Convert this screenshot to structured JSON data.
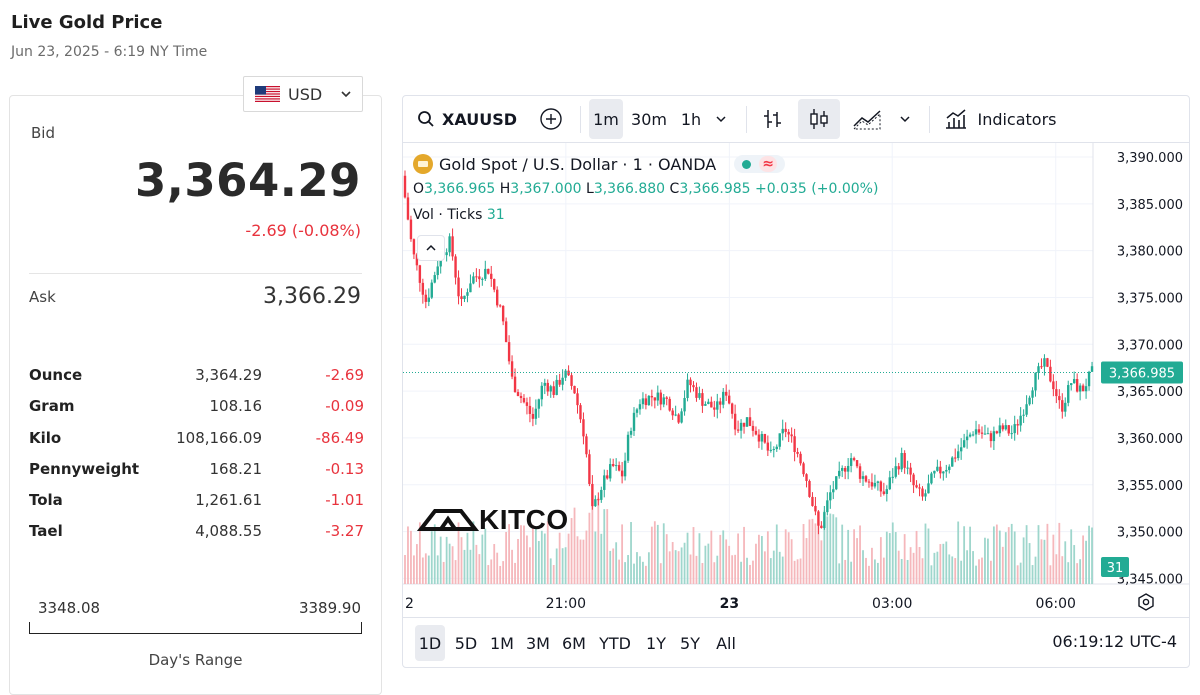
{
  "page": {
    "title": "Live Gold Price",
    "date": "Jun 23, 2025 - 6:19 NY Time"
  },
  "currency": {
    "selected": "USD"
  },
  "quote": {
    "bid_label": "Bid",
    "bid": "3,364.29",
    "change": "-2.69 (-0.08%)",
    "ask_label": "Ask",
    "ask": "3,366.29"
  },
  "units": [
    {
      "name": "Ounce",
      "value": "3,364.29",
      "change": "-2.69"
    },
    {
      "name": "Gram",
      "value": "108.16",
      "change": "-0.09"
    },
    {
      "name": "Kilo",
      "value": "108,166.09",
      "change": "-86.49"
    },
    {
      "name": "Pennyweight",
      "value": "168.21",
      "change": "-0.13"
    },
    {
      "name": "Tola",
      "value": "1,261.61",
      "change": "-1.01"
    },
    {
      "name": "Tael",
      "value": "4,088.55",
      "change": "-3.27"
    }
  ],
  "day_range": {
    "low": "3348.08",
    "high": "3389.90",
    "label": "Day's Range"
  },
  "toolbar": {
    "symbol": "XAUUSD",
    "intervals": [
      "1m",
      "30m",
      "1h"
    ],
    "active_interval": "1m",
    "indicators_label": "Indicators"
  },
  "legend": {
    "title": "Gold Spot / U.S. Dollar · 1 · OANDA",
    "o_label": "O",
    "o": "3,366.965",
    "h_label": "H",
    "h": "3,367.000",
    "l_label": "L",
    "l": "3,366.880",
    "c_label": "C",
    "c": "3,366.985",
    "change": "+0.035 (+0.00%)",
    "vol_label": "Vol · Ticks",
    "vol": "31"
  },
  "watermark": "KITCO",
  "colors": {
    "up": "#22ab94",
    "down": "#f23645",
    "vol_up": "#9ed6cc",
    "vol_down": "#f5b7bb",
    "bid_change": "#e8333d"
  },
  "range_buttons": [
    "1D",
    "5D",
    "1M",
    "3M",
    "6M",
    "YTD",
    "1Y",
    "5Y",
    "All"
  ],
  "active_range": "1D",
  "clock": "06:19:12 UTC-4",
  "chart_data": {
    "type": "candlestick",
    "y_ticks": [
      "3,390.000",
      "3,385.000",
      "3,380.000",
      "3,375.000",
      "3,370.000",
      "3,365.000",
      "3,360.000",
      "3,355.000",
      "3,350.000",
      "3,345.000"
    ],
    "ylim": [
      3344.4,
      3391.5
    ],
    "x_ticks": [
      {
        "label": "2",
        "t": 0,
        "bold": false
      },
      {
        "label": "21:00",
        "t": 0.236,
        "bold": false
      },
      {
        "label": "23",
        "t": 0.473,
        "bold": true
      },
      {
        "label": "03:00",
        "t": 0.709,
        "bold": false
      },
      {
        "label": "06:00",
        "t": 0.946,
        "bold": false
      }
    ],
    "last_price": 3366.985,
    "last_price_label": "3,366.985",
    "last_volume_label": "31",
    "price_path": [
      [
        0.0,
        3388.0
      ],
      [
        0.015,
        3380.0
      ],
      [
        0.035,
        3374.5
      ],
      [
        0.055,
        3379.5
      ],
      [
        0.07,
        3381.0
      ],
      [
        0.085,
        3374.0
      ],
      [
        0.1,
        3377.0
      ],
      [
        0.125,
        3378.0
      ],
      [
        0.145,
        3373.0
      ],
      [
        0.16,
        3366.0
      ],
      [
        0.175,
        3364.0
      ],
      [
        0.19,
        3362.0
      ],
      [
        0.205,
        3366.0
      ],
      [
        0.22,
        3365.0
      ],
      [
        0.235,
        3367.0
      ],
      [
        0.25,
        3365.0
      ],
      [
        0.265,
        3360.0
      ],
      [
        0.275,
        3352.0
      ],
      [
        0.29,
        3355.0
      ],
      [
        0.305,
        3357.0
      ],
      [
        0.32,
        3356.0
      ],
      [
        0.33,
        3361.0
      ],
      [
        0.345,
        3364.0
      ],
      [
        0.365,
        3364.5
      ],
      [
        0.385,
        3364.0
      ],
      [
        0.4,
        3362.0
      ],
      [
        0.415,
        3366.0
      ],
      [
        0.435,
        3364.0
      ],
      [
        0.455,
        3363.0
      ],
      [
        0.47,
        3365.0
      ],
      [
        0.485,
        3361.0
      ],
      [
        0.5,
        3362.0
      ],
      [
        0.52,
        3360.0
      ],
      [
        0.535,
        3358.0
      ],
      [
        0.555,
        3361.0
      ],
      [
        0.57,
        3359.0
      ],
      [
        0.585,
        3356.0
      ],
      [
        0.598,
        3352.0
      ],
      [
        0.605,
        3350.0
      ],
      [
        0.62,
        3354.0
      ],
      [
        0.635,
        3356.0
      ],
      [
        0.65,
        3358.0
      ],
      [
        0.665,
        3356.0
      ],
      [
        0.685,
        3355.0
      ],
      [
        0.7,
        3354.0
      ],
      [
        0.71,
        3356.0
      ],
      [
        0.725,
        3358.0
      ],
      [
        0.74,
        3355.0
      ],
      [
        0.755,
        3353.5
      ],
      [
        0.77,
        3356.0
      ],
      [
        0.79,
        3357.0
      ],
      [
        0.81,
        3359.0
      ],
      [
        0.83,
        3361.0
      ],
      [
        0.85,
        3360.0
      ],
      [
        0.87,
        3361.0
      ],
      [
        0.885,
        3360.5
      ],
      [
        0.9,
        3363.0
      ],
      [
        0.915,
        3366.0
      ],
      [
        0.93,
        3368.0
      ],
      [
        0.945,
        3365.5
      ],
      [
        0.955,
        3363.0
      ],
      [
        0.97,
        3366.0
      ],
      [
        0.985,
        3365.0
      ],
      [
        1.0,
        3366.985
      ]
    ]
  }
}
